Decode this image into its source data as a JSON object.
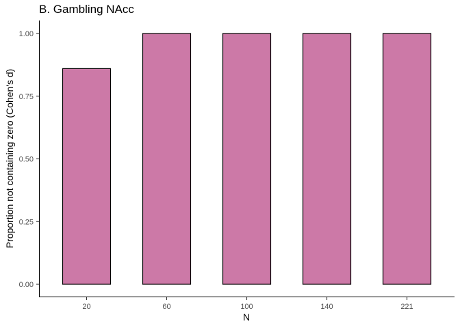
{
  "chart_data": {
    "type": "bar",
    "title": "B. Gambling NAcc",
    "xlabel": "N",
    "ylabel": "Proportion not containing zero (Cohen's d)",
    "categories": [
      "20",
      "60",
      "100",
      "140",
      "221"
    ],
    "values": [
      0.86,
      1.0,
      1.0,
      1.0,
      1.0
    ],
    "ylim": [
      0,
      1
    ],
    "yticks": [
      "0.00",
      "0.25",
      "0.50",
      "0.75",
      "1.00"
    ],
    "grid": false,
    "legend": "none",
    "bar_color": "#cc79a7",
    "bar_outline_color": "#000000"
  }
}
